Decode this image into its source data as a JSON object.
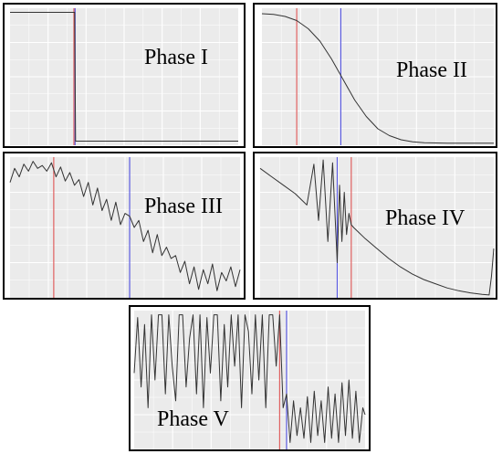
{
  "colors": {
    "plot_background": "#ebebeb",
    "grid_line": "#ffffff",
    "curve": "#333333",
    "red_marker": "#e06060",
    "blue_marker": "#5a5ae0",
    "frame": "#000000"
  },
  "chart_data": [
    {
      "type": "line",
      "title": "Phase I",
      "ylim": [
        0,
        1
      ],
      "red_marker_x": 0.28,
      "blue_marker_x": 0.285,
      "series": [
        {
          "x": [
            0,
            0.283,
            0.287,
            1
          ],
          "values": [
            0.97,
            0.97,
            0.03,
            0.03
          ]
        }
      ]
    },
    {
      "type": "line",
      "title": "Phase II",
      "ylim": [
        0,
        1
      ],
      "red_marker_x": 0.15,
      "blue_marker_x": 0.34,
      "series": [
        {
          "x": [
            0,
            0.05,
            0.1,
            0.15,
            0.2,
            0.25,
            0.3,
            0.35,
            0.4,
            0.45,
            0.5,
            0.55,
            0.6,
            0.65,
            0.7,
            0.8,
            0.9,
            1
          ],
          "values": [
            0.96,
            0.955,
            0.94,
            0.91,
            0.85,
            0.76,
            0.63,
            0.48,
            0.33,
            0.21,
            0.12,
            0.07,
            0.04,
            0.025,
            0.018,
            0.015,
            0.015,
            0.015
          ]
        }
      ]
    },
    {
      "type": "line",
      "title": "Phase III",
      "ylim": [
        0,
        1
      ],
      "red_marker_x": 0.19,
      "blue_marker_x": 0.52,
      "series": [
        {
          "x": [
            0,
            0.02,
            0.04,
            0.06,
            0.08,
            0.1,
            0.12,
            0.14,
            0.16,
            0.18,
            0.2,
            0.22,
            0.24,
            0.26,
            0.28,
            0.3,
            0.32,
            0.34,
            0.36,
            0.38,
            0.4,
            0.42,
            0.44,
            0.46,
            0.48,
            0.5,
            0.52,
            0.54,
            0.56,
            0.58,
            0.6,
            0.62,
            0.64,
            0.66,
            0.68,
            0.7,
            0.72,
            0.74,
            0.76,
            0.78,
            0.8,
            0.82,
            0.84,
            0.86,
            0.88,
            0.9,
            0.92,
            0.94,
            0.96,
            0.98,
            1.0
          ],
          "values": [
            0.82,
            0.92,
            0.86,
            0.95,
            0.9,
            0.97,
            0.92,
            0.94,
            0.9,
            0.96,
            0.86,
            0.93,
            0.83,
            0.89,
            0.8,
            0.84,
            0.72,
            0.82,
            0.66,
            0.78,
            0.62,
            0.7,
            0.55,
            0.68,
            0.52,
            0.6,
            0.58,
            0.5,
            0.55,
            0.4,
            0.48,
            0.32,
            0.45,
            0.3,
            0.36,
            0.28,
            0.3,
            0.18,
            0.26,
            0.1,
            0.22,
            0.06,
            0.2,
            0.1,
            0.24,
            0.05,
            0.18,
            0.12,
            0.22,
            0.08,
            0.2
          ]
        }
      ]
    },
    {
      "type": "line",
      "title": "Phase IV",
      "ylim": [
        0,
        1
      ],
      "red_marker_x": 0.39,
      "blue_marker_x": 0.33,
      "series": [
        {
          "x": [
            0,
            0.05,
            0.1,
            0.15,
            0.2,
            0.23,
            0.25,
            0.27,
            0.29,
            0.31,
            0.33,
            0.34,
            0.35,
            0.36,
            0.37,
            0.38,
            0.39,
            0.4,
            0.45,
            0.5,
            0.55,
            0.6,
            0.65,
            0.7,
            0.75,
            0.8,
            0.85,
            0.9,
            0.95,
            0.98,
            0.99,
            1.0
          ],
          "values": [
            0.92,
            0.86,
            0.8,
            0.74,
            0.66,
            0.95,
            0.55,
            0.98,
            0.4,
            0.96,
            0.25,
            0.8,
            0.4,
            0.75,
            0.45,
            0.6,
            0.52,
            0.5,
            0.42,
            0.35,
            0.28,
            0.22,
            0.17,
            0.13,
            0.1,
            0.07,
            0.05,
            0.035,
            0.025,
            0.02,
            0.15,
            0.35
          ]
        }
      ]
    },
    {
      "type": "line",
      "title": "Phase V",
      "ylim": [
        0,
        1
      ],
      "red_marker_x": 0.63,
      "blue_marker_x": 0.66,
      "series": [
        {
          "x": [
            0,
            0.015,
            0.03,
            0.045,
            0.06,
            0.075,
            0.09,
            0.105,
            0.12,
            0.135,
            0.15,
            0.165,
            0.18,
            0.195,
            0.21,
            0.225,
            0.24,
            0.255,
            0.27,
            0.285,
            0.3,
            0.315,
            0.33,
            0.345,
            0.36,
            0.375,
            0.39,
            0.405,
            0.42,
            0.435,
            0.45,
            0.465,
            0.48,
            0.495,
            0.51,
            0.525,
            0.54,
            0.555,
            0.57,
            0.585,
            0.6,
            0.615,
            0.63,
            0.645,
            0.66,
            0.675,
            0.69,
            0.705,
            0.72,
            0.735,
            0.75,
            0.765,
            0.78,
            0.795,
            0.81,
            0.825,
            0.84,
            0.855,
            0.87,
            0.885,
            0.9,
            0.915,
            0.93,
            0.945,
            0.96,
            0.975,
            0.99,
            1.0
          ],
          "values": [
            0.55,
            0.95,
            0.45,
            0.9,
            0.3,
            0.97,
            0.5,
            0.97,
            0.97,
            0.4,
            0.97,
            0.6,
            0.35,
            0.97,
            0.97,
            0.45,
            0.8,
            0.97,
            0.4,
            0.97,
            0.3,
            0.95,
            0.55,
            0.97,
            0.97,
            0.35,
            0.9,
            0.45,
            0.97,
            0.6,
            0.97,
            0.3,
            0.97,
            0.85,
            0.4,
            0.97,
            0.5,
            0.97,
            0.3,
            0.97,
            0.97,
            0.6,
            0.97,
            0.3,
            0.4,
            0.05,
            0.35,
            0.1,
            0.3,
            0.08,
            0.38,
            0.05,
            0.42,
            0.1,
            0.35,
            0.05,
            0.45,
            0.08,
            0.4,
            0.05,
            0.48,
            0.1,
            0.5,
            0.08,
            0.42,
            0.05,
            0.3,
            0.25
          ]
        }
      ]
    }
  ]
}
